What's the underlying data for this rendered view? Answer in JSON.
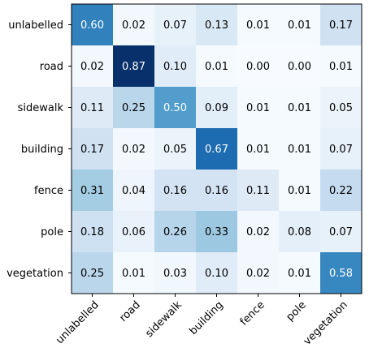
{
  "chart_data": {
    "type": "heatmap",
    "title": "",
    "xlabel": "",
    "ylabel": "",
    "x_categories": [
      "unlabelled",
      "road",
      "sidewalk",
      "building",
      "fence",
      "pole",
      "vegetation"
    ],
    "y_categories": [
      "unlabelled",
      "road",
      "sidewalk",
      "building",
      "fence",
      "pole",
      "vegetation"
    ],
    "values": [
      [
        0.6,
        0.02,
        0.07,
        0.13,
        0.01,
        0.01,
        0.17
      ],
      [
        0.02,
        0.87,
        0.1,
        0.01,
        0.0,
        0.0,
        0.01
      ],
      [
        0.11,
        0.25,
        0.5,
        0.09,
        0.01,
        0.01,
        0.05
      ],
      [
        0.17,
        0.02,
        0.05,
        0.67,
        0.01,
        0.01,
        0.07
      ],
      [
        0.31,
        0.04,
        0.16,
        0.16,
        0.11,
        0.01,
        0.22
      ],
      [
        0.18,
        0.06,
        0.26,
        0.33,
        0.02,
        0.08,
        0.07
      ],
      [
        0.25,
        0.01,
        0.03,
        0.1,
        0.02,
        0.01,
        0.58
      ]
    ],
    "value_range": [
      0.0,
      0.87
    ],
    "colormap": "Blues",
    "x_tick_rotation_deg": 45,
    "annotations_visible": true,
    "grid": false,
    "legend": false
  }
}
